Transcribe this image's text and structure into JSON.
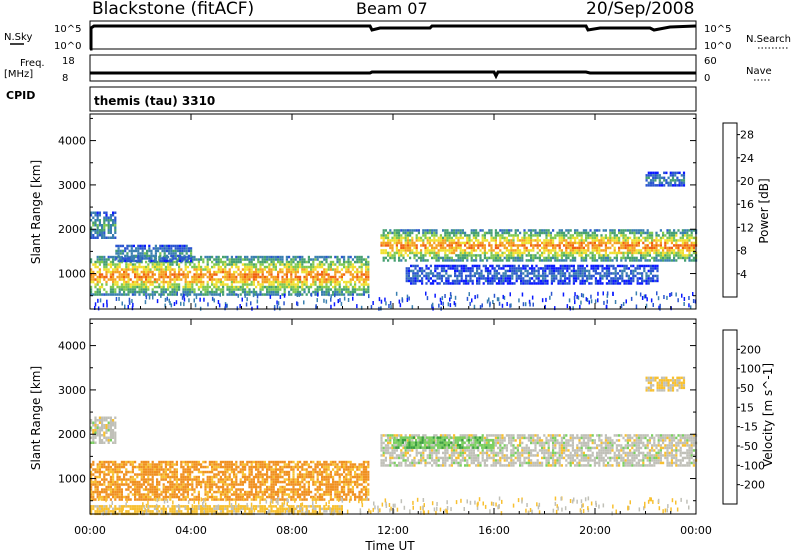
{
  "header": {
    "station": "Blackstone (fitACF)",
    "beam": "Beam 07",
    "date": "20/Sep/2008"
  },
  "status_panels": {
    "nsky_label": "N.Sky",
    "nsky_ticks": [
      "10^5",
      "10^0"
    ],
    "nsearch_label": "N.Search",
    "freq_label": "Freq.",
    "freq_unit": "[MHz]",
    "freq_ticks": [
      "18",
      "8"
    ],
    "nave_label": "Nave",
    "nave_ticks": [
      "60",
      "0"
    ],
    "cpid_label": "CPID",
    "cpid_text": "themis (tau) 3310"
  },
  "colors": {
    "power_scale": [
      "#0a1aff",
      "#2a55d0",
      "#3a7fb0",
      "#45a070",
      "#7ec850",
      "#f0e030",
      "#f5a020",
      "#f06010",
      "#e81010"
    ],
    "velocity_scale": [
      "#1a2fd0",
      "#2a7aa0",
      "#3aa040",
      "#7ad060",
      "#c8c8c0",
      "#f8c030",
      "#f09020",
      "#f06010",
      "#e81010"
    ],
    "ground_scatter": "#c0c0b8"
  },
  "chart_data": [
    {
      "type": "heatmap",
      "panel": "power",
      "xlabel": "Time UT",
      "ylabel": "Slant Range [km]",
      "xlim": [
        0,
        24
      ],
      "ylim": [
        200,
        4600
      ],
      "x_ticks": [
        "00:00",
        "04:00",
        "08:00",
        "12:00",
        "16:00",
        "20:00",
        "00:00"
      ],
      "y_ticks": [
        1000,
        2000,
        3000,
        4000
      ],
      "colorbar": {
        "label": "Power [dB]",
        "ticks": [
          4,
          8,
          12,
          16,
          20,
          24,
          28
        ],
        "range": [
          0,
          30
        ]
      },
      "echo_regions": [
        {
          "t_start": 0.0,
          "t_end": 1.0,
          "range_low": 1800,
          "range_high": 2400,
          "level": 10
        },
        {
          "t_start": 0.0,
          "t_end": 11.0,
          "range_low": 550,
          "range_high": 1400,
          "level": 20
        },
        {
          "t_start": 1.0,
          "t_end": 4.0,
          "range_low": 1300,
          "range_high": 1650,
          "level": 9
        },
        {
          "t_start": 11.5,
          "t_end": 24.0,
          "range_low": 1300,
          "range_high": 2000,
          "level": 20
        },
        {
          "t_start": 12.5,
          "t_end": 22.5,
          "range_low": 800,
          "range_high": 1200,
          "level": 6
        },
        {
          "t_start": 22.0,
          "t_end": 23.5,
          "range_low": 3000,
          "range_high": 3300,
          "level": 8
        }
      ]
    },
    {
      "type": "heatmap",
      "panel": "velocity",
      "xlabel": "Time UT",
      "ylabel": "Slant Range [km]",
      "xlim": [
        0,
        24
      ],
      "ylim": [
        200,
        4600
      ],
      "x_ticks": [
        "00:00",
        "04:00",
        "08:00",
        "12:00",
        "16:00",
        "20:00",
        "00:00"
      ],
      "y_ticks": [
        1000,
        2000,
        3000,
        4000
      ],
      "colorbar": {
        "label": "Velocity [m s^-1]",
        "ticks": [
          200,
          100,
          50,
          15,
          -15,
          -50,
          -100,
          -200
        ]
      },
      "echo_regions": [
        {
          "t_start": 0.0,
          "t_end": 1.0,
          "range_low": 1800,
          "range_high": 2400,
          "velocity": 0
        },
        {
          "t_start": 0.0,
          "t_end": 11.0,
          "range_low": 550,
          "range_high": 1400,
          "velocity": -60
        },
        {
          "t_start": 11.5,
          "t_end": 24.0,
          "range_low": 1300,
          "range_high": 2000,
          "velocity": 0
        },
        {
          "t_start": 12.0,
          "t_end": 16.0,
          "range_low": 1700,
          "range_high": 1950,
          "velocity": 40
        },
        {
          "t_start": 0.0,
          "t_end": 10.0,
          "range_low": 200,
          "range_high": 400,
          "velocity": -30
        },
        {
          "t_start": 22.0,
          "t_end": 23.5,
          "range_low": 3000,
          "range_high": 3300,
          "velocity": -20
        }
      ]
    }
  ]
}
